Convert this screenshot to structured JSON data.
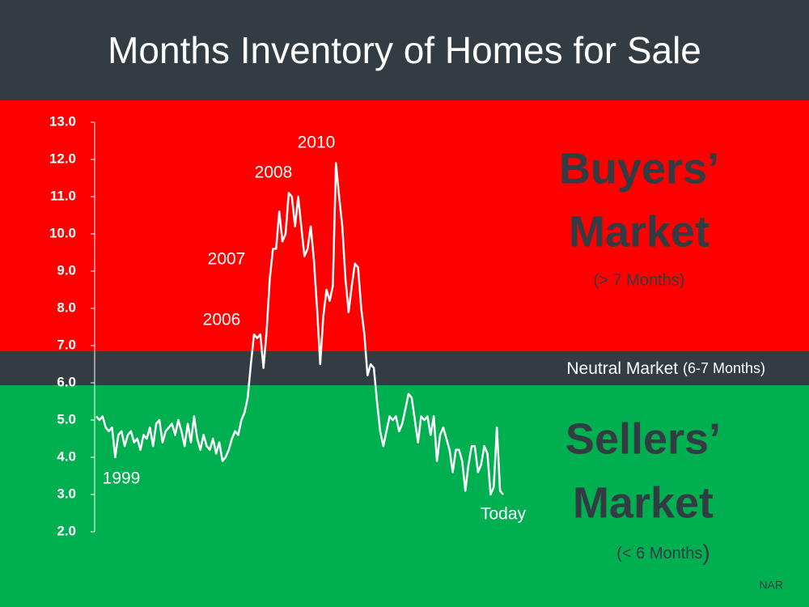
{
  "chart_data": {
    "type": "line",
    "title": "Months Inventory of Homes for Sale",
    "color": "#ffffff",
    "values": [
      5.1,
      5.0,
      5.1,
      4.8,
      4.7,
      4.8,
      4.0,
      4.6,
      4.7,
      4.3,
      4.6,
      4.7,
      4.4,
      4.5,
      4.2,
      4.6,
      4.5,
      4.8,
      4.3,
      4.9,
      5.0,
      4.4,
      4.7,
      4.8,
      4.9,
      4.6,
      5.0,
      4.7,
      4.3,
      4.9,
      4.4,
      5.1,
      4.5,
      4.2,
      4.6,
      4.3,
      4.2,
      4.5,
      4.1,
      4.4,
      3.9,
      4.0,
      4.2,
      4.5,
      4.7,
      4.6,
      5.0,
      5.2,
      5.6,
      6.5,
      7.3,
      7.2,
      7.3,
      6.4,
      7.4,
      8.8,
      9.6,
      9.6,
      10.6,
      9.8,
      10.0,
      11.1,
      11.0,
      10.2,
      11.0,
      10.2,
      9.4,
      9.6,
      10.2,
      9.3,
      8.0,
      6.5,
      7.8,
      8.5,
      8.2,
      8.6,
      11.9,
      11.0,
      10.2,
      8.8,
      7.9,
      8.6,
      9.2,
      9.1,
      8.0,
      7.3,
      6.2,
      6.5,
      6.4,
      5.5,
      4.7,
      4.3,
      4.7,
      5.1,
      5.0,
      5.1,
      4.7,
      4.9,
      5.3,
      5.7,
      5.6,
      5.0,
      4.4,
      5.1,
      5.0,
      5.1,
      4.6,
      5.1,
      3.9,
      4.6,
      4.8,
      4.5,
      4.2,
      3.6,
      4.2,
      4.2,
      3.9,
      3.1,
      3.8,
      4.3,
      4.3,
      3.6,
      3.8,
      4.3,
      4.1,
      3.0,
      3.2,
      4.8,
      3.1,
      3.0
    ],
    "ylim": [
      2.0,
      13.0
    ],
    "yticks": [
      {
        "value": 2,
        "label": "2.0"
      },
      {
        "value": 3,
        "label": "3.0"
      },
      {
        "value": 4,
        "label": "4.0"
      },
      {
        "value": 5,
        "label": "5.0"
      },
      {
        "value": 6,
        "label": "6.0"
      },
      {
        "value": 7,
        "label": "7.0"
      },
      {
        "value": 8,
        "label": "8.0"
      },
      {
        "value": 9,
        "label": "9.0"
      },
      {
        "value": 10,
        "label": "10.0"
      },
      {
        "value": 11,
        "label": "11.0"
      },
      {
        "value": 12,
        "label": "12.0"
      },
      {
        "value": 13,
        "label": "13.0"
      }
    ],
    "annotations": [
      "1999",
      "2006",
      "2007",
      "2008",
      "2010",
      "Today"
    ],
    "buyers_market": {
      "line1": "Buyers’",
      "line2": "Market",
      "note": "(> 7 Months)"
    },
    "neutral_market": {
      "label": "Neutral Market",
      "note": "(6-7 Months)"
    },
    "sellers_market": {
      "line1": "Sellers’",
      "line2": "Market",
      "note": "(< 6 Months",
      "note_end": ")"
    },
    "source": "NAR"
  }
}
